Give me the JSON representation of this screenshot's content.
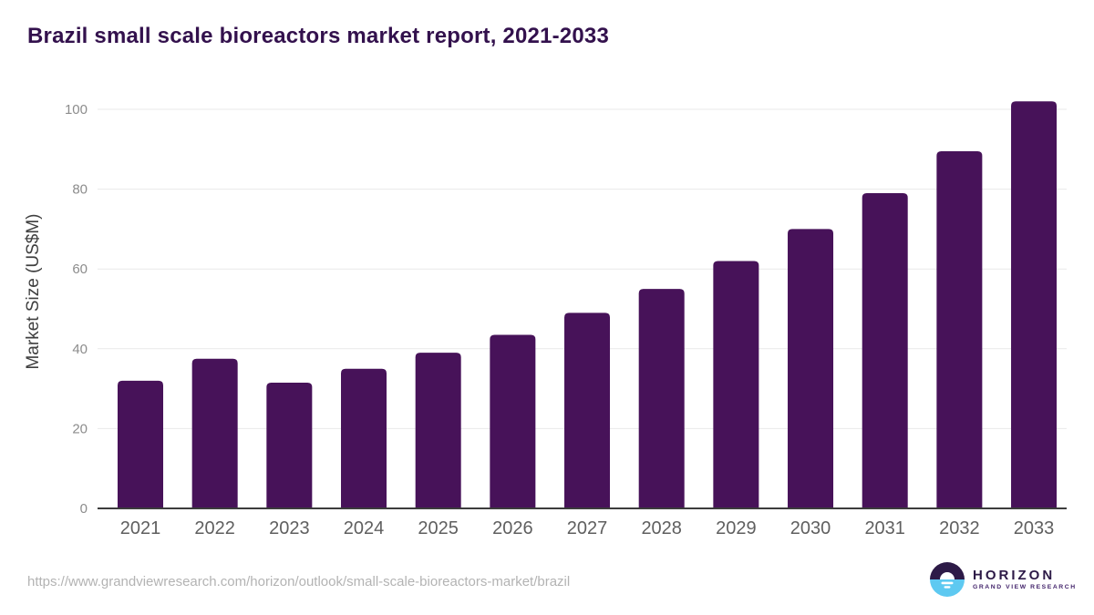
{
  "header": {
    "title": "Brazil small scale bioreactors market report, 2021-2033",
    "title_color": "#33114d"
  },
  "chart_data": {
    "type": "bar",
    "title": "Brazil small scale bioreactors market report, 2021-2033",
    "xlabel": "",
    "ylabel": "Market Size (US$M)",
    "categories": [
      "2021",
      "2022",
      "2023",
      "2024",
      "2025",
      "2026",
      "2027",
      "2028",
      "2029",
      "2030",
      "2031",
      "2032",
      "2033"
    ],
    "values": [
      32,
      37.5,
      31.5,
      35,
      39,
      43.5,
      49,
      55,
      62,
      70,
      79,
      89.5,
      102
    ],
    "unit": "US$M",
    "ylim": [
      0,
      105
    ],
    "yticks": [
      0,
      20,
      40,
      60,
      80,
      100
    ],
    "grid": "horizontal-only",
    "legend": "none",
    "bar_color": "#471259",
    "axis_line_color": "#3c3c3c",
    "gridline_color": "#e9e9e9",
    "ytick_label_color": "#8c8c8c",
    "xtick_label_color": "#5f5f5f",
    "ylabel_color": "#3f3f3f"
  },
  "footer": {
    "source_url": "https://www.grandviewresearch.com/horizon/outlook/small-scale-bioreactors-market/brazil",
    "source_url_color": "#b3b3b3",
    "logo": {
      "brand": "HORIZON",
      "sub_brand": "GRAND VIEW RESEARCH",
      "brand_color": "#2d1a47",
      "sub_brand_color": "#43246b",
      "icon_top_color": "#2d1a47",
      "icon_bottom_color": "#5ec9f1",
      "icon_detail_color": "#ffffff"
    }
  }
}
